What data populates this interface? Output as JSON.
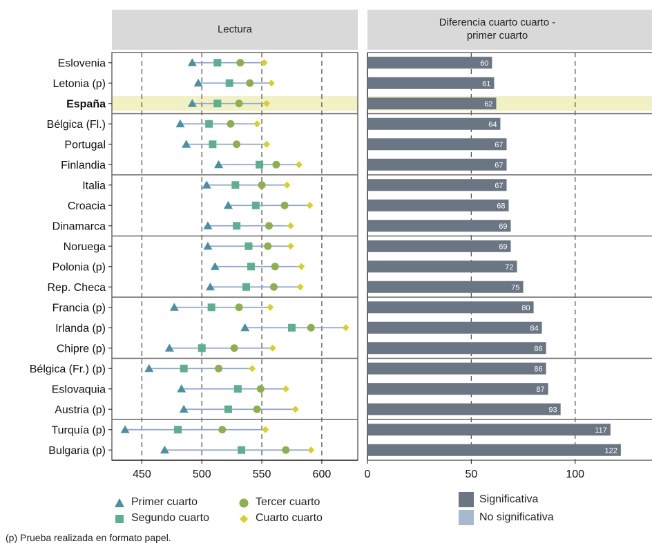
{
  "colors": {
    "panel_header_bg": "#d9d9d9",
    "highlight": "#f2f1c4",
    "range_line": "#8fa3d9",
    "primer": "#4a90a4",
    "segundo": "#5bb08e",
    "tercer": "#8cb04a",
    "cuarto": "#d9d021",
    "significativa": "#6b7685",
    "no_significativa": "#a8b8d0",
    "grid": "#555555",
    "border": "#666666"
  },
  "chart_data": [
    {
      "type": "dot-range",
      "title": "Lectura",
      "highlight_category": "España",
      "categories": [
        "Eslovenia",
        "Letonia (p)",
        "España",
        "Bélgica (Fl.)",
        "Portugal",
        "Finlandia",
        "Italia",
        "Croacia",
        "Dinamarca",
        "Noruega",
        "Polonia (p)",
        "Rep. Checa",
        "Francia (p)",
        "Irlanda (p)",
        "Chipre (p)",
        "Bélgica (Fr.) (p)",
        "Eslovaquia",
        "Austria (p)",
        "Turquía (p)",
        "Bulgaria (p)"
      ],
      "series": [
        {
          "name": "Primer cuarto",
          "marker": "triangle",
          "values": [
            492,
            497,
            492,
            482,
            487,
            514,
            504,
            522,
            505,
            505,
            511,
            507,
            477,
            536,
            473,
            456,
            483,
            485,
            436,
            469
          ]
        },
        {
          "name": "Segundo cuarto",
          "marker": "square",
          "values": [
            513,
            523,
            513,
            506,
            509,
            548,
            528,
            545,
            529,
            539,
            541,
            537,
            508,
            575,
            500,
            485,
            530,
            522,
            480,
            533
          ]
        },
        {
          "name": "Tercer cuarto",
          "marker": "circle",
          "values": [
            532,
            540,
            531,
            524,
            529,
            562,
            550,
            569,
            556,
            555,
            561,
            560,
            531,
            591,
            527,
            514,
            549,
            546,
            517,
            570
          ]
        },
        {
          "name": "Cuarto cuarto",
          "marker": "diamond",
          "values": [
            552,
            558,
            554,
            546,
            554,
            581,
            571,
            590,
            574,
            574,
            583,
            582,
            557,
            620,
            559,
            542,
            570,
            578,
            553,
            591
          ]
        }
      ],
      "xlim": [
        425,
        630
      ],
      "xticks": [
        450,
        500,
        550,
        600
      ]
    },
    {
      "type": "bar",
      "orientation": "horizontal",
      "title": "Diferencia cuarto cuarto -\nprimer cuarto",
      "categories": [
        "Eslovenia",
        "Letonia (p)",
        "España",
        "Bélgica (Fl.)",
        "Portugal",
        "Finlandia",
        "Italia",
        "Croacia",
        "Dinamarca",
        "Noruega",
        "Polonia (p)",
        "Rep. Checa",
        "Francia (p)",
        "Irlanda (p)",
        "Chipre (p)",
        "Bélgica (Fr.) (p)",
        "Eslovaquia",
        "Austria (p)",
        "Turquía (p)",
        "Bulgaria (p)"
      ],
      "values": [
        60,
        61,
        62,
        64,
        67,
        67,
        67,
        68,
        69,
        69,
        72,
        75,
        80,
        84,
        86,
        86,
        87,
        93,
        117,
        122
      ],
      "xlim": [
        0,
        137
      ],
      "xticks": [
        0,
        50,
        100
      ]
    }
  ],
  "legend": {
    "primer": "Primer cuarto",
    "segundo": "Segundo cuarto",
    "tercer": "Tercer cuarto",
    "cuarto": "Cuarto cuarto",
    "significativa": "Significativa",
    "no_significativa": "No significativa"
  },
  "footnote": "(p) Prueba realizada en formato papel."
}
